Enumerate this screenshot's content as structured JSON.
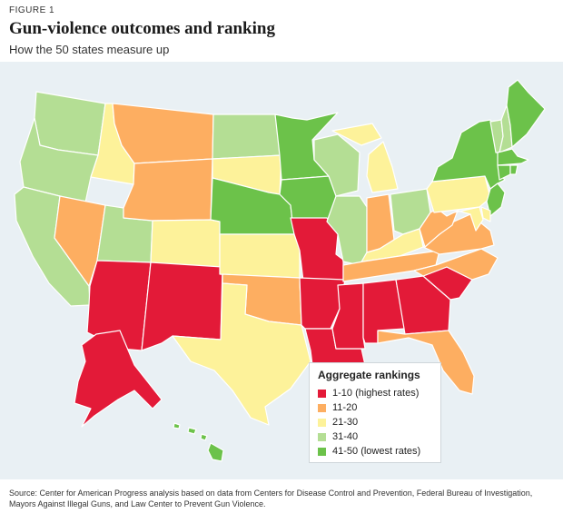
{
  "figure_label": "FIGURE 1",
  "title": "Gun-violence outcomes and ranking",
  "subtitle": "How the 50 states measure up",
  "colors": {
    "1": "#e31a38",
    "2": "#fdae61",
    "3": "#fdf29a",
    "4": "#b4de94",
    "5": "#6cc24a",
    "background": "#e9f0f4"
  },
  "legend": {
    "title": "Aggregate rankings",
    "items": [
      {
        "tier": 1,
        "label": "1-10 (highest rates)"
      },
      {
        "tier": 2,
        "label": "11-20"
      },
      {
        "tier": 3,
        "label": "21-30"
      },
      {
        "tier": 4,
        "label": "31-40"
      },
      {
        "tier": 5,
        "label": "41-50 (lowest rates)"
      }
    ]
  },
  "states": [
    {
      "abbr": "WA",
      "tier": 4
    },
    {
      "abbr": "OR",
      "tier": 4
    },
    {
      "abbr": "CA",
      "tier": 4
    },
    {
      "abbr": "ID",
      "tier": 3
    },
    {
      "abbr": "NV",
      "tier": 2
    },
    {
      "abbr": "UT",
      "tier": 4
    },
    {
      "abbr": "AZ",
      "tier": 1
    },
    {
      "abbr": "MT",
      "tier": 2
    },
    {
      "abbr": "WY",
      "tier": 2
    },
    {
      "abbr": "CO",
      "tier": 3
    },
    {
      "abbr": "NM",
      "tier": 1
    },
    {
      "abbr": "ND",
      "tier": 4
    },
    {
      "abbr": "SD",
      "tier": 3
    },
    {
      "abbr": "NE",
      "tier": 5
    },
    {
      "abbr": "KS",
      "tier": 3
    },
    {
      "abbr": "OK",
      "tier": 2
    },
    {
      "abbr": "TX",
      "tier": 3
    },
    {
      "abbr": "MN",
      "tier": 5
    },
    {
      "abbr": "IA",
      "tier": 5
    },
    {
      "abbr": "MO",
      "tier": 1
    },
    {
      "abbr": "AR",
      "tier": 1
    },
    {
      "abbr": "LA",
      "tier": 1
    },
    {
      "abbr": "WI",
      "tier": 4
    },
    {
      "abbr": "IL",
      "tier": 4
    },
    {
      "abbr": "MI",
      "tier": 3
    },
    {
      "abbr": "IN",
      "tier": 2
    },
    {
      "abbr": "OH",
      "tier": 4
    },
    {
      "abbr": "KY",
      "tier": 3
    },
    {
      "abbr": "TN",
      "tier": 2
    },
    {
      "abbr": "MS",
      "tier": 1
    },
    {
      "abbr": "AL",
      "tier": 1
    },
    {
      "abbr": "GA",
      "tier": 1
    },
    {
      "abbr": "FL",
      "tier": 2
    },
    {
      "abbr": "SC",
      "tier": 1
    },
    {
      "abbr": "NC",
      "tier": 2
    },
    {
      "abbr": "VA",
      "tier": 2
    },
    {
      "abbr": "WV",
      "tier": 2
    },
    {
      "abbr": "PA",
      "tier": 3
    },
    {
      "abbr": "NY",
      "tier": 5
    },
    {
      "abbr": "VT",
      "tier": 4
    },
    {
      "abbr": "NH",
      "tier": 4
    },
    {
      "abbr": "ME",
      "tier": 5
    },
    {
      "abbr": "MA",
      "tier": 5
    },
    {
      "abbr": "CT",
      "tier": 5
    },
    {
      "abbr": "RI",
      "tier": 5
    },
    {
      "abbr": "NJ",
      "tier": 5
    },
    {
      "abbr": "DE",
      "tier": 3
    },
    {
      "abbr": "MD",
      "tier": 3
    },
    {
      "abbr": "AK",
      "tier": 1
    },
    {
      "abbr": "HI",
      "tier": 5
    }
  ],
  "source": "Source: Center for American Progress analysis based on data from Centers for Disease Control and Prevention, Federal Bureau of Investigation, Mayors Against Illegal Guns, and Law Center to Prevent Gun Violence."
}
